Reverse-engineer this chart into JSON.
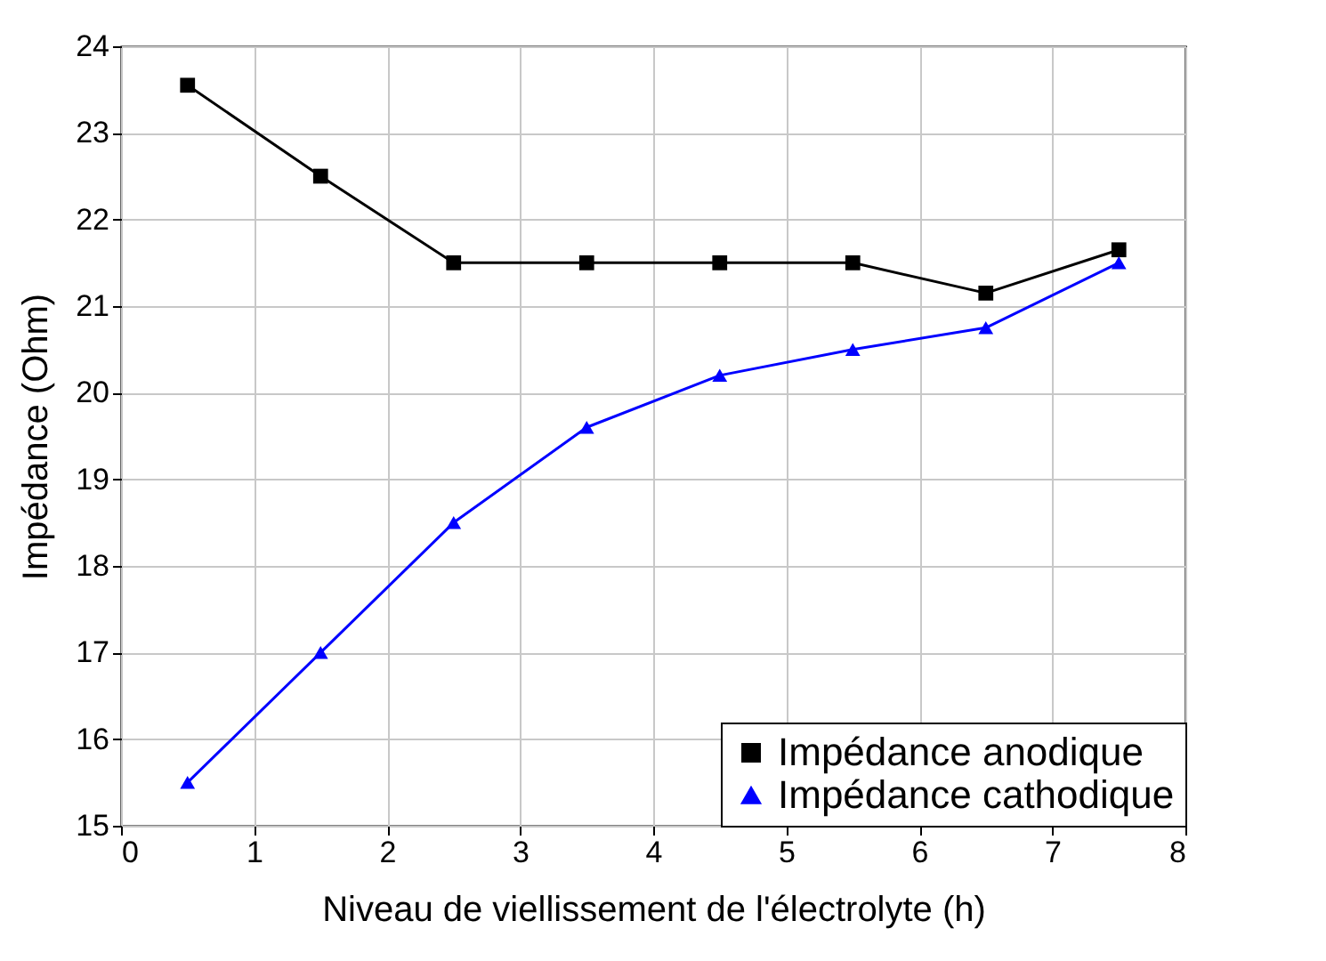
{
  "chart_data": {
    "type": "line",
    "xlabel": "Niveau de viellissement de l'électrolyte (h)",
    "ylabel": "Impédance (Ohm)",
    "x": [
      0.5,
      1.5,
      2.5,
      3.5,
      4.5,
      5.5,
      6.5,
      7.5
    ],
    "series": [
      {
        "name": "Impédance anodique",
        "color": "#000000",
        "marker": "square",
        "values": [
          23.55,
          22.5,
          21.5,
          21.5,
          21.5,
          21.5,
          21.15,
          21.65
        ]
      },
      {
        "name": "Impédance cathodique",
        "color": "#0000ff",
        "marker": "triangle",
        "values": [
          15.5,
          17.0,
          18.5,
          19.6,
          20.2,
          20.5,
          20.75,
          21.5
        ]
      }
    ],
    "xlim": [
      0,
      8
    ],
    "xticks": [
      0,
      1,
      2,
      3,
      4,
      5,
      6,
      7,
      8
    ],
    "ylim": [
      15,
      24
    ],
    "yticks": [
      15,
      16,
      17,
      18,
      19,
      20,
      21,
      22,
      23,
      24
    ],
    "grid": true,
    "legend": "bottom right",
    "line_style": "solid"
  }
}
